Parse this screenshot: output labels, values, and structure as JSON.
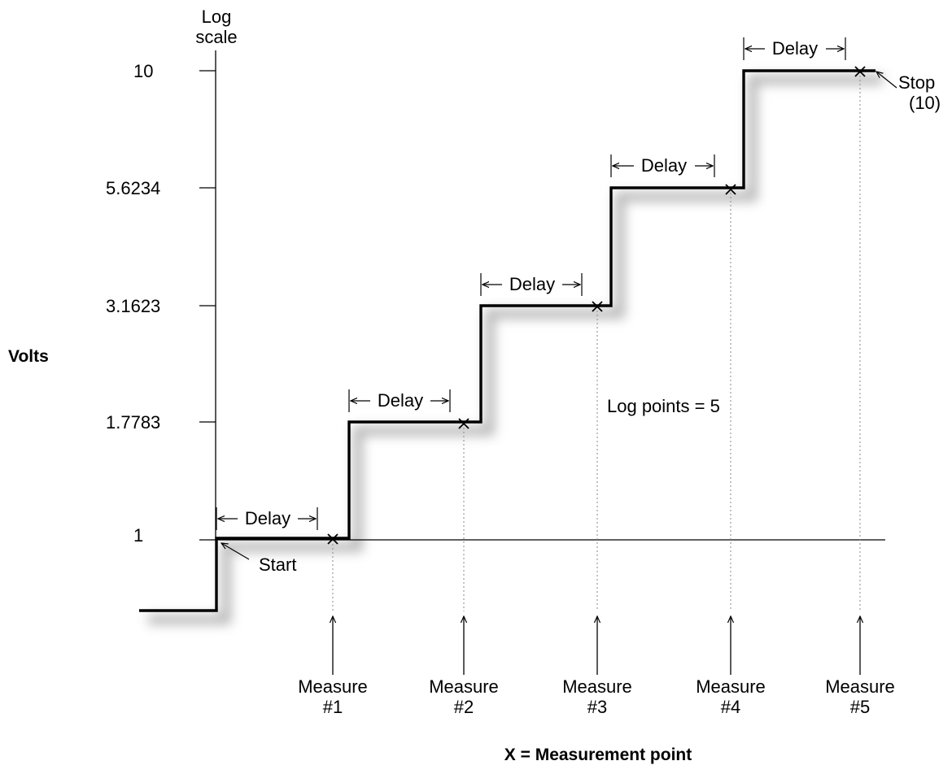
{
  "axis": {
    "scale_label_line1": "Log",
    "scale_label_line2": "scale",
    "y_title": "Volts",
    "ticks": [
      "10",
      "5.6234",
      "3.1623",
      "1.7783",
      "1"
    ]
  },
  "chart_data": {
    "type": "line",
    "title": "",
    "xlabel": "",
    "ylabel": "Volts",
    "y_scale": "log",
    "step_levels": [
      1,
      1.7783,
      3.1623,
      5.6234,
      10
    ],
    "log_points": 5,
    "start_value": 1,
    "stop_value": 10
  },
  "annotations": {
    "delay": "Delay",
    "start": "Start",
    "stop_line1": "Stop",
    "stop_line2": "(10)",
    "log_points": "Log points = 5",
    "legend": "X = Measurement point"
  },
  "measures": [
    {
      "line1": "Measure",
      "line2": "#1"
    },
    {
      "line1": "Measure",
      "line2": "#2"
    },
    {
      "line1": "Measure",
      "line2": "#3"
    },
    {
      "line1": "Measure",
      "line2": "#4"
    },
    {
      "line1": "Measure",
      "line2": "#5"
    }
  ],
  "colors": {
    "line": "#000000",
    "shadow": "#9a9a9a",
    "guide": "#888888"
  }
}
